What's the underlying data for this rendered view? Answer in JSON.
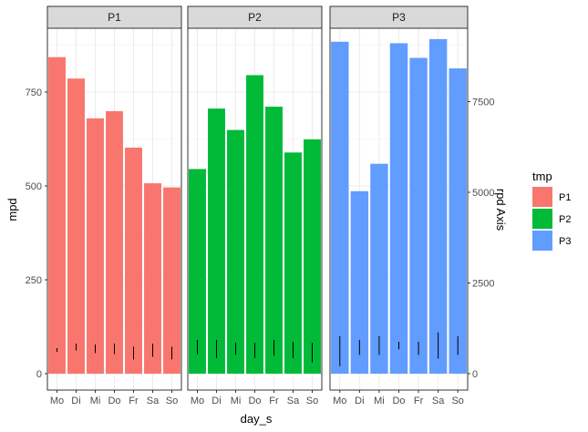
{
  "chart_data": {
    "type": "bar",
    "facet_labels": [
      "P1",
      "P2",
      "P3"
    ],
    "categories": [
      "Mo",
      "Di",
      "Mi",
      "Do",
      "Fr",
      "Sa",
      "So"
    ],
    "xlabel": "day_s",
    "ylabel": "mpd",
    "secondary_ylabel": "rpd Axis",
    "ylim": [
      0,
      900
    ],
    "y_ticks": [
      0,
      250,
      500,
      750
    ],
    "y_tick_labels": [
      "0",
      "250",
      "500",
      "750"
    ],
    "secondary_ylim": [
      0,
      9000
    ],
    "secondary_y_ticks": [
      0,
      2500,
      5000,
      7500
    ],
    "secondary_y_tick_labels": [
      "0",
      "2500",
      "5000",
      "7500"
    ],
    "grid": true,
    "legend": {
      "title": "tmp",
      "position": "right",
      "entries": [
        {
          "label": "P1",
          "color": "#F8766D"
        },
        {
          "label": "P2",
          "color": "#00BA38"
        },
        {
          "label": "P3",
          "color": "#619CFF"
        }
      ]
    },
    "series": [
      {
        "name": "P1",
        "color": "#F8766D",
        "values": [
          843,
          786,
          680,
          699,
          602,
          507,
          496
        ],
        "error_low": [
          58,
          62,
          55,
          52,
          38,
          45,
          38
        ],
        "error_high": [
          68,
          80,
          78,
          80,
          72,
          80,
          72
        ]
      },
      {
        "name": "P2",
        "color": "#00BA38",
        "values": [
          545,
          706,
          649,
          795,
          711,
          589,
          624
        ],
        "error_low": [
          52,
          42,
          50,
          42,
          48,
          42,
          30
        ],
        "error_high": [
          90,
          90,
          82,
          82,
          90,
          85,
          82
        ]
      },
      {
        "name": "P3",
        "color": "#619CFF",
        "values": [
          884,
          486,
          559,
          880,
          841,
          891,
          813
        ],
        "error_low": [
          20,
          50,
          50,
          65,
          50,
          40,
          50
        ],
        "error_high": [
          100,
          90,
          100,
          85,
          85,
          110,
          100
        ]
      }
    ]
  }
}
